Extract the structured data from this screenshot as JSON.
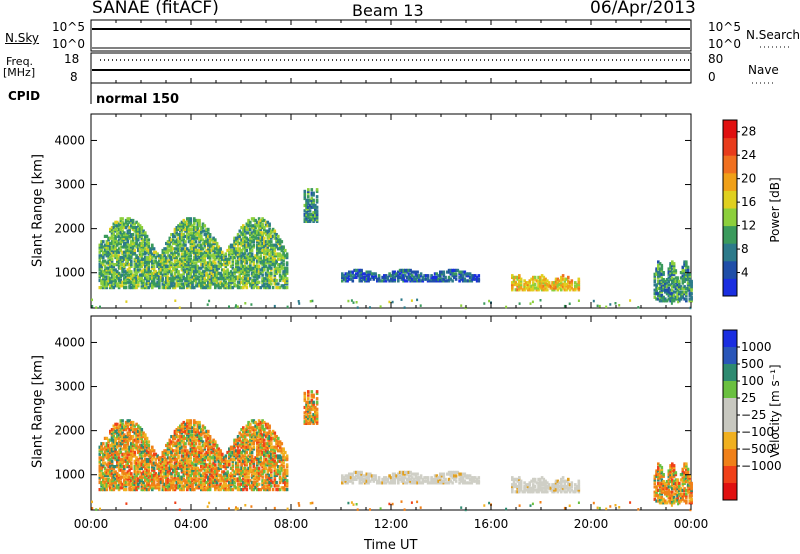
{
  "header": {
    "title": "SANAE (fitACF)",
    "beam": "Beam 13",
    "date": "06/Apr/2013"
  },
  "panels": {
    "nsky": {
      "left_label": "N.Sky",
      "left_top": "10^5",
      "left_bottom": "10^0",
      "right_top": "10^5",
      "right_bottom": "10^0",
      "right_label": "N.Search"
    },
    "freq": {
      "left_label_1": "Freq.",
      "left_label_2": "[MHz]",
      "left_top": "18",
      "left_bottom": "8",
      "right_top": "80",
      "right_bottom": "0",
      "right_label": "Nave"
    },
    "cpid": {
      "label": "CPID",
      "value": "normal 150"
    }
  },
  "chart_data": [
    {
      "type": "heatmap",
      "name": "power",
      "ylabel": "Slant Range [km]",
      "xlabel": "",
      "ylim": [
        200,
        4600
      ],
      "yticks": [
        1000,
        2000,
        3000,
        4000
      ],
      "colorbar": {
        "label": "Power [dB]",
        "ticks": [
          4,
          8,
          12,
          16,
          20,
          24,
          28
        ],
        "range": [
          0,
          30
        ],
        "colors": [
          "#1a2ee0",
          "#1f4ea8",
          "#2c7a8a",
          "#3a9a5c",
          "#8ccf3c",
          "#e0d020",
          "#f0a018",
          "#f07020",
          "#e83c1c",
          "#e01010"
        ]
      },
      "regions": [
        {
          "t0": 0.3,
          "t1": 7.8,
          "r0": 700,
          "r1": 2300,
          "value": 10
        },
        {
          "t0": 8.5,
          "t1": 9.0,
          "r0": 2200,
          "r1": 3000,
          "value": 8
        },
        {
          "t0": 10.0,
          "t1": 15.5,
          "r0": 850,
          "r1": 1100,
          "value": 4
        },
        {
          "t0": 16.8,
          "t1": 19.5,
          "r0": 650,
          "r1": 1000,
          "value": 16
        },
        {
          "t0": 22.5,
          "t1": 24.0,
          "r0": 400,
          "r1": 1300,
          "value": 8
        }
      ]
    },
    {
      "type": "heatmap",
      "name": "velocity",
      "ylabel": "Slant Range [km]",
      "xlabel": "Time UT",
      "ylim": [
        200,
        4600
      ],
      "yticks": [
        1000,
        2000,
        3000,
        4000
      ],
      "x": [
        "00:00",
        "04:00",
        "08:00",
        "12:00",
        "16:00",
        "20:00",
        "00:00"
      ],
      "colorbar": {
        "label": "Velocity [m s⁻¹]",
        "ticks": [
          "1000",
          "500",
          "100",
          "25",
          "−25",
          "−100",
          "−500",
          "−1000"
        ],
        "colors": [
          "#1a2ee0",
          "#2a56b8",
          "#2e8a70",
          "#6ac040",
          "#c8c8c0",
          "#c8c8c0",
          "#f0b020",
          "#f08018",
          "#f04018",
          "#e01010"
        ]
      },
      "regions": [
        {
          "t0": 0.3,
          "t1": 7.8,
          "r0": 700,
          "r1": 2300,
          "value": -100
        },
        {
          "t0": 8.5,
          "t1": 9.0,
          "r0": 2200,
          "r1": 3000,
          "value": -100
        },
        {
          "t0": 10.0,
          "t1": 15.5,
          "r0": 850,
          "r1": 1100,
          "value": 0
        },
        {
          "t0": 16.8,
          "t1": 19.5,
          "r0": 650,
          "r1": 1000,
          "value": 0
        },
        {
          "t0": 22.5,
          "t1": 24.0,
          "r0": 400,
          "r1": 1300,
          "value": -100
        }
      ]
    }
  ],
  "legend": {
    "nsearch_style": "dotted",
    "nave_style": "dotted"
  }
}
